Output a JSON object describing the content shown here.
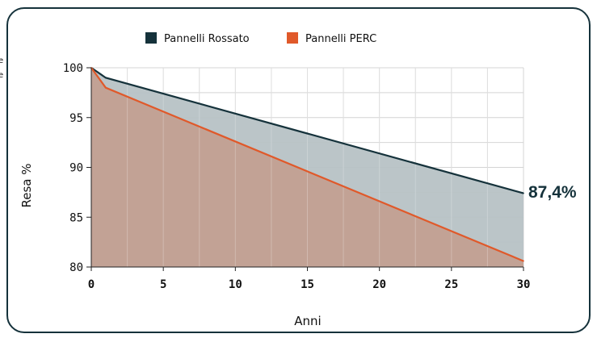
{
  "chart_data": {
    "type": "area",
    "xlabel": "Anni",
    "ylabel": "Resa %",
    "xlim": [
      0,
      30
    ],
    "ylim": [
      80,
      100
    ],
    "xticks": [
      "0",
      "5",
      "10",
      "15",
      "20",
      "25",
      "30"
    ],
    "yticks": [
      "80",
      "85",
      "90",
      "95",
      "100"
    ],
    "grid": true,
    "legend_position": "top-center",
    "series": [
      {
        "name": "Pannelli Rossato",
        "color": "#15323b",
        "fill": "#b7c2c5",
        "x": [
          0,
          1,
          30
        ],
        "y": [
          100,
          99,
          87.4
        ]
      },
      {
        "name": "Pannelli PERC",
        "color": "#e0592a",
        "fill": "#c2a092",
        "x": [
          0,
          1,
          30
        ],
        "y": [
          100,
          98,
          80.6
        ]
      }
    ],
    "end_label": "87,4%",
    "edge_marks": [
      "e",
      "e"
    ]
  }
}
